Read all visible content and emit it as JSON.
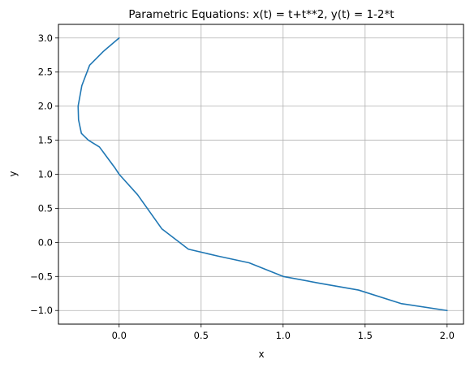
{
  "chart_data": {
    "type": "line",
    "title": "Parametric Equations: x(t) = t+t**2, y(t) = 1-2*t",
    "xlabel": "x",
    "ylabel": "y",
    "xlim": [
      -0.37,
      2.1
    ],
    "ylim": [
      -1.2,
      3.2
    ],
    "x_ticks": [
      0.0,
      0.5,
      1.0,
      1.5,
      2.0
    ],
    "x_tick_labels": [
      "0.0",
      "0.5",
      "1.0",
      "1.5",
      "2.0"
    ],
    "y_ticks": [
      -1.0,
      -0.5,
      0.0,
      0.5,
      1.0,
      1.5,
      2.0,
      2.5,
      3.0
    ],
    "y_tick_labels": [
      "−1.0",
      "−0.5",
      "0.0",
      "0.5",
      "1.0",
      "1.5",
      "2.0",
      "2.5",
      "3.0"
    ],
    "grid": true,
    "line_color": "#1f77b4",
    "series": [
      {
        "x": [
          0.0,
          -0.0975,
          -0.18,
          -0.2275,
          -0.25,
          -0.2475,
          -0.23,
          -0.1875,
          -0.12,
          -0.0275,
          0.0,
          0.1125,
          0.26,
          0.4225,
          0.6,
          0.7925,
          1.0,
          1.2225,
          1.46,
          1.7225,
          2.0
        ],
        "y": [
          3.0,
          2.8,
          2.6,
          2.3,
          2.0,
          1.8,
          1.6,
          1.5,
          1.4,
          1.1,
          1.0,
          0.7,
          0.2,
          -0.1,
          -0.2,
          -0.3,
          -0.5,
          -0.6,
          -0.7,
          -0.9,
          -1.0
        ]
      }
    ]
  }
}
